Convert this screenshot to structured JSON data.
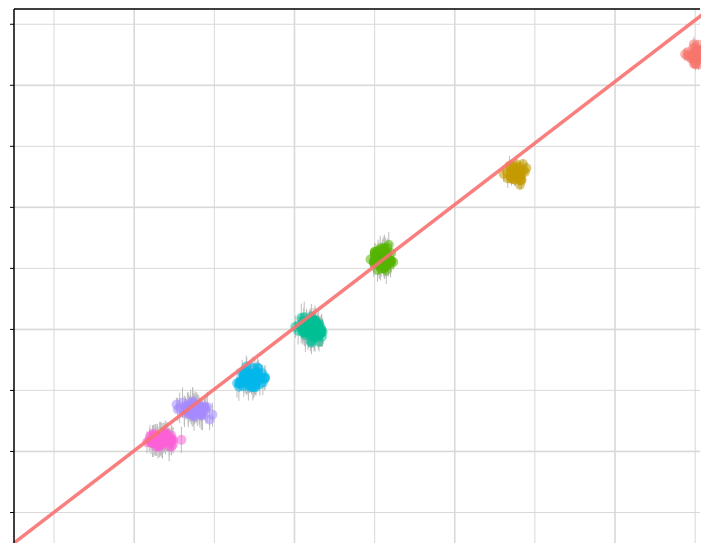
{
  "chart_data": {
    "type": "scatter",
    "title": "",
    "xlabel": "",
    "ylabel": "",
    "xlim": [
      0.0,
      8.56
    ],
    "ylim": [
      0.0,
      8.75
    ],
    "grid": true,
    "legend": "none",
    "x_gridlines": [
      0.5,
      1.5,
      2.5,
      3.5,
      4.5,
      5.5,
      6.5,
      7.5,
      8.5
    ],
    "y_gridlines": [
      0.5,
      1.5,
      2.5,
      3.5,
      4.5,
      5.5,
      6.5,
      7.5,
      8.5
    ],
    "reference_line": {
      "color": "#f87171",
      "points": [
        [
          0.0,
          0.0
        ],
        [
          8.68,
          8.75
        ]
      ]
    },
    "error_bar_color": "#bdbdbd",
    "series": [
      {
        "color": "#f8766d",
        "center": [
          8.5,
          8.0
        ],
        "spread": [
          0.07,
          0.1
        ],
        "n": 45,
        "err": 0.09
      },
      {
        "color": "#c49a00",
        "center": [
          6.27,
          6.05
        ],
        "spread": [
          0.08,
          0.12
        ],
        "n": 50,
        "err": 0.12
      },
      {
        "color": "#53b400",
        "center": [
          4.6,
          4.65
        ],
        "spread": [
          0.08,
          0.14
        ],
        "n": 70,
        "err": 0.18
      },
      {
        "color": "#00c094",
        "center": [
          3.7,
          3.5
        ],
        "spread": [
          0.11,
          0.14
        ],
        "n": 75,
        "err": 0.2
      },
      {
        "color": "#00b6eb",
        "center": [
          2.95,
          2.7
        ],
        "spread": [
          0.11,
          0.1
        ],
        "n": 75,
        "err": 0.18
      },
      {
        "color": "#a58aff",
        "center": [
          2.25,
          2.2
        ],
        "spread": [
          0.12,
          0.1
        ],
        "n": 70,
        "err": 0.18
      },
      {
        "color": "#fb61d7",
        "center": [
          1.85,
          1.7
        ],
        "spread": [
          0.13,
          0.08
        ],
        "n": 75,
        "err": 0.18
      }
    ]
  }
}
